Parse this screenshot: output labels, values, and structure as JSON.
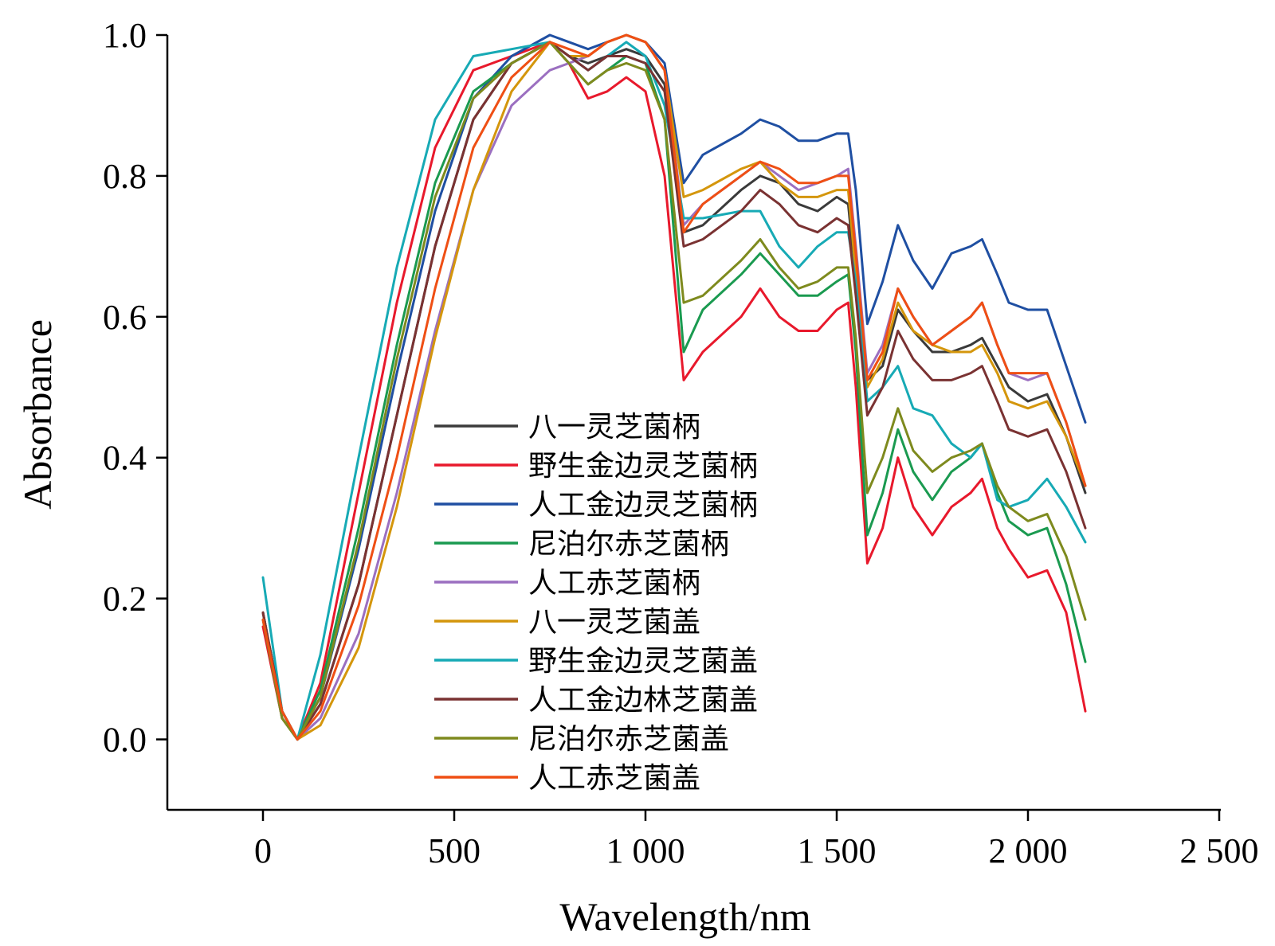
{
  "chart_data": {
    "type": "line",
    "title": "",
    "xlabel": "Wavelength/nm",
    "ylabel": "Absorbance",
    "xlim": [
      -250,
      2500
    ],
    "ylim": [
      -0.1,
      1.0
    ],
    "xticks": [
      0,
      500,
      1000,
      1500,
      2000,
      2500
    ],
    "xtick_labels": [
      "0",
      "500",
      "1 000",
      "1 500",
      "2 000",
      "2 500"
    ],
    "yticks": [
      0.0,
      0.2,
      0.4,
      0.6,
      0.8,
      1.0
    ],
    "ytick_labels": [
      "0.0",
      "0.2",
      "0.4",
      "0.6",
      "0.8",
      "1.0"
    ],
    "grid": false,
    "legend_position": "center",
    "x": [
      0,
      50,
      90,
      150,
      250,
      350,
      450,
      550,
      650,
      750,
      800,
      850,
      900,
      950,
      1000,
      1050,
      1100,
      1150,
      1250,
      1300,
      1350,
      1400,
      1450,
      1500,
      1530,
      1550,
      1580,
      1620,
      1660,
      1700,
      1750,
      1800,
      1850,
      1880,
      1920,
      1950,
      2000,
      2050,
      2100,
      2150
    ],
    "series": [
      {
        "name": "八一灵芝菌柄",
        "color": "#3a3a3a",
        "values": [
          0.18,
          0.04,
          0.0,
          0.05,
          0.22,
          0.46,
          0.7,
          0.88,
          0.96,
          0.99,
          0.97,
          0.96,
          0.97,
          0.98,
          0.97,
          0.93,
          0.72,
          0.73,
          0.78,
          0.8,
          0.79,
          0.76,
          0.75,
          0.77,
          0.76,
          0.65,
          0.51,
          0.53,
          0.61,
          0.58,
          0.55,
          0.55,
          0.56,
          0.57,
          0.53,
          0.5,
          0.48,
          0.49,
          0.43,
          0.35
        ]
      },
      {
        "name": "野生金边灵芝菌柄",
        "color": "#e8192c",
        "values": [
          0.16,
          0.03,
          0.0,
          0.08,
          0.35,
          0.62,
          0.84,
          0.95,
          0.97,
          0.99,
          0.96,
          0.91,
          0.92,
          0.94,
          0.92,
          0.8,
          0.51,
          0.55,
          0.6,
          0.64,
          0.6,
          0.58,
          0.58,
          0.61,
          0.62,
          0.5,
          0.25,
          0.3,
          0.4,
          0.33,
          0.29,
          0.33,
          0.35,
          0.37,
          0.3,
          0.27,
          0.23,
          0.24,
          0.18,
          0.04
        ]
      },
      {
        "name": "人工金边灵芝菌柄",
        "color": "#1f4fa2",
        "values": [
          0.18,
          0.04,
          0.0,
          0.06,
          0.27,
          0.52,
          0.75,
          0.91,
          0.97,
          1.0,
          0.99,
          0.98,
          0.99,
          1.0,
          0.99,
          0.96,
          0.79,
          0.83,
          0.86,
          0.88,
          0.87,
          0.85,
          0.85,
          0.86,
          0.86,
          0.78,
          0.59,
          0.65,
          0.73,
          0.68,
          0.64,
          0.69,
          0.7,
          0.71,
          0.66,
          0.62,
          0.61,
          0.61,
          0.53,
          0.45
        ]
      },
      {
        "name": "尼泊尔赤芝菌柄",
        "color": "#1a9a50",
        "values": [
          0.17,
          0.03,
          0.0,
          0.07,
          0.3,
          0.56,
          0.79,
          0.92,
          0.96,
          0.99,
          0.96,
          0.93,
          0.95,
          0.97,
          0.96,
          0.88,
          0.55,
          0.61,
          0.66,
          0.69,
          0.66,
          0.63,
          0.63,
          0.65,
          0.66,
          0.55,
          0.29,
          0.35,
          0.44,
          0.38,
          0.34,
          0.38,
          0.4,
          0.42,
          0.35,
          0.31,
          0.29,
          0.3,
          0.22,
          0.11
        ]
      },
      {
        "name": "人工赤芝菌柄",
        "color": "#9b6fc0",
        "values": [
          0.18,
          0.04,
          0.0,
          0.03,
          0.15,
          0.35,
          0.58,
          0.78,
          0.9,
          0.95,
          0.96,
          0.97,
          0.99,
          1.0,
          0.99,
          0.95,
          0.73,
          0.76,
          0.8,
          0.82,
          0.8,
          0.78,
          0.79,
          0.8,
          0.81,
          0.7,
          0.52,
          0.56,
          0.64,
          0.6,
          0.56,
          0.58,
          0.6,
          0.62,
          0.56,
          0.52,
          0.51,
          0.52,
          0.45,
          0.36
        ]
      },
      {
        "name": "八一灵芝菌盖",
        "color": "#d4960c",
        "values": [
          0.18,
          0.04,
          0.0,
          0.02,
          0.13,
          0.33,
          0.57,
          0.78,
          0.92,
          0.99,
          0.97,
          0.97,
          0.99,
          1.0,
          0.99,
          0.95,
          0.77,
          0.78,
          0.81,
          0.82,
          0.79,
          0.77,
          0.77,
          0.78,
          0.78,
          0.66,
          0.5,
          0.54,
          0.62,
          0.58,
          0.56,
          0.55,
          0.55,
          0.56,
          0.52,
          0.48,
          0.47,
          0.48,
          0.43,
          0.36
        ]
      },
      {
        "name": "野生金边灵芝菌盖",
        "color": "#17aab5",
        "values": [
          0.23,
          0.04,
          0.0,
          0.12,
          0.4,
          0.67,
          0.88,
          0.97,
          0.98,
          0.99,
          0.97,
          0.95,
          0.97,
          0.99,
          0.97,
          0.9,
          0.74,
          0.74,
          0.75,
          0.75,
          0.7,
          0.67,
          0.7,
          0.72,
          0.72,
          0.65,
          0.48,
          0.5,
          0.53,
          0.47,
          0.46,
          0.42,
          0.4,
          0.42,
          0.34,
          0.33,
          0.34,
          0.37,
          0.33,
          0.28
        ]
      },
      {
        "name": "人工金边林芝菌盖",
        "color": "#7a3232",
        "values": [
          0.18,
          0.04,
          0.0,
          0.05,
          0.22,
          0.46,
          0.7,
          0.88,
          0.96,
          0.99,
          0.97,
          0.95,
          0.97,
          0.97,
          0.96,
          0.92,
          0.7,
          0.71,
          0.75,
          0.78,
          0.76,
          0.73,
          0.72,
          0.74,
          0.73,
          0.63,
          0.46,
          0.5,
          0.58,
          0.54,
          0.51,
          0.51,
          0.52,
          0.53,
          0.48,
          0.44,
          0.43,
          0.44,
          0.38,
          0.3
        ]
      },
      {
        "name": "尼泊尔赤芝菌盖",
        "color": "#7e8a1e",
        "values": [
          0.17,
          0.03,
          0.0,
          0.06,
          0.28,
          0.54,
          0.77,
          0.91,
          0.96,
          0.99,
          0.96,
          0.93,
          0.95,
          0.96,
          0.95,
          0.88,
          0.62,
          0.63,
          0.68,
          0.71,
          0.67,
          0.64,
          0.65,
          0.67,
          0.67,
          0.57,
          0.35,
          0.4,
          0.47,
          0.41,
          0.38,
          0.4,
          0.41,
          0.42,
          0.36,
          0.33,
          0.31,
          0.32,
          0.26,
          0.17
        ]
      },
      {
        "name": "人工赤芝菌盖",
        "color": "#ef4f14",
        "values": [
          0.17,
          0.04,
          0.0,
          0.04,
          0.19,
          0.4,
          0.64,
          0.84,
          0.94,
          0.99,
          0.98,
          0.97,
          0.99,
          1.0,
          0.99,
          0.95,
          0.72,
          0.76,
          0.8,
          0.82,
          0.81,
          0.79,
          0.79,
          0.8,
          0.8,
          0.69,
          0.51,
          0.55,
          0.64,
          0.6,
          0.56,
          0.58,
          0.6,
          0.62,
          0.56,
          0.52,
          0.52,
          0.52,
          0.45,
          0.36
        ]
      }
    ]
  }
}
